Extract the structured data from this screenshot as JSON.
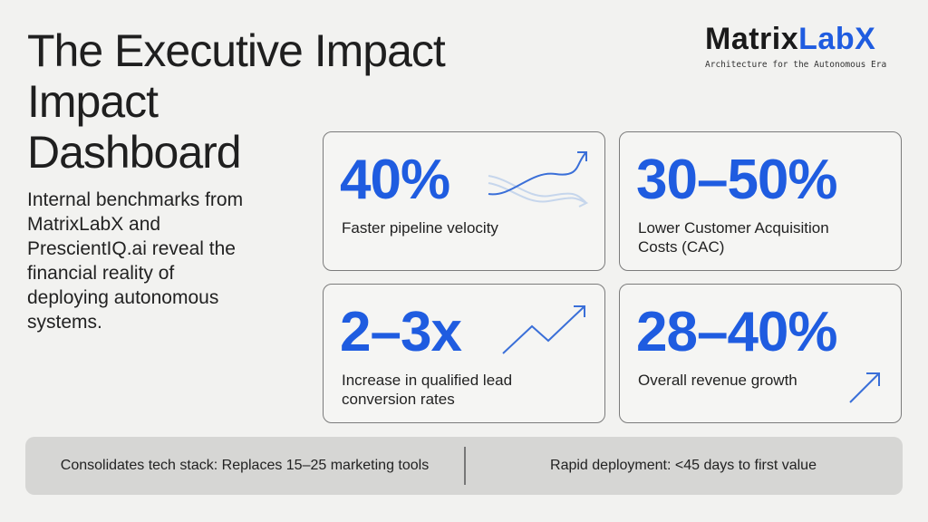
{
  "title": {
    "line1": "The Executive Impact",
    "line2": "Impact",
    "line3": "Dashboard"
  },
  "intro": {
    "line1": "Internal benchmarks from",
    "line2": "MatrixLabX and",
    "line3": "PrescientIQ.ai reveal the",
    "line4": "financial reality of",
    "line5": "deploying autonomous",
    "line6": "systems."
  },
  "brand": {
    "logo_main": "Matrix",
    "logo_accent": "LabX",
    "tagline": "Architecture for the Autonomous Era",
    "accent_color": "#1f5ce0"
  },
  "cards": [
    {
      "value": "40%",
      "label_lines": [
        "Faster pipeline velocity"
      ],
      "icon": "crossing-arrows-icon"
    },
    {
      "value": "30–50%",
      "label_lines": [
        "Lower Customer Acquisition",
        "Costs (CAC)"
      ],
      "icon": ""
    },
    {
      "value": "2–3x",
      "label_lines": [
        "Increase in qualified lead",
        "conversion rates"
      ],
      "icon": "trend-up-arrow-icon"
    },
    {
      "value": "28–40%",
      "label_lines": [
        "Overall revenue growth"
      ],
      "icon": "arrow-up-right-icon"
    }
  ],
  "footer": {
    "left": "Consolidates tech stack: Replaces 15–25 marketing tools",
    "right": "Rapid deployment: <45 days to first value"
  }
}
